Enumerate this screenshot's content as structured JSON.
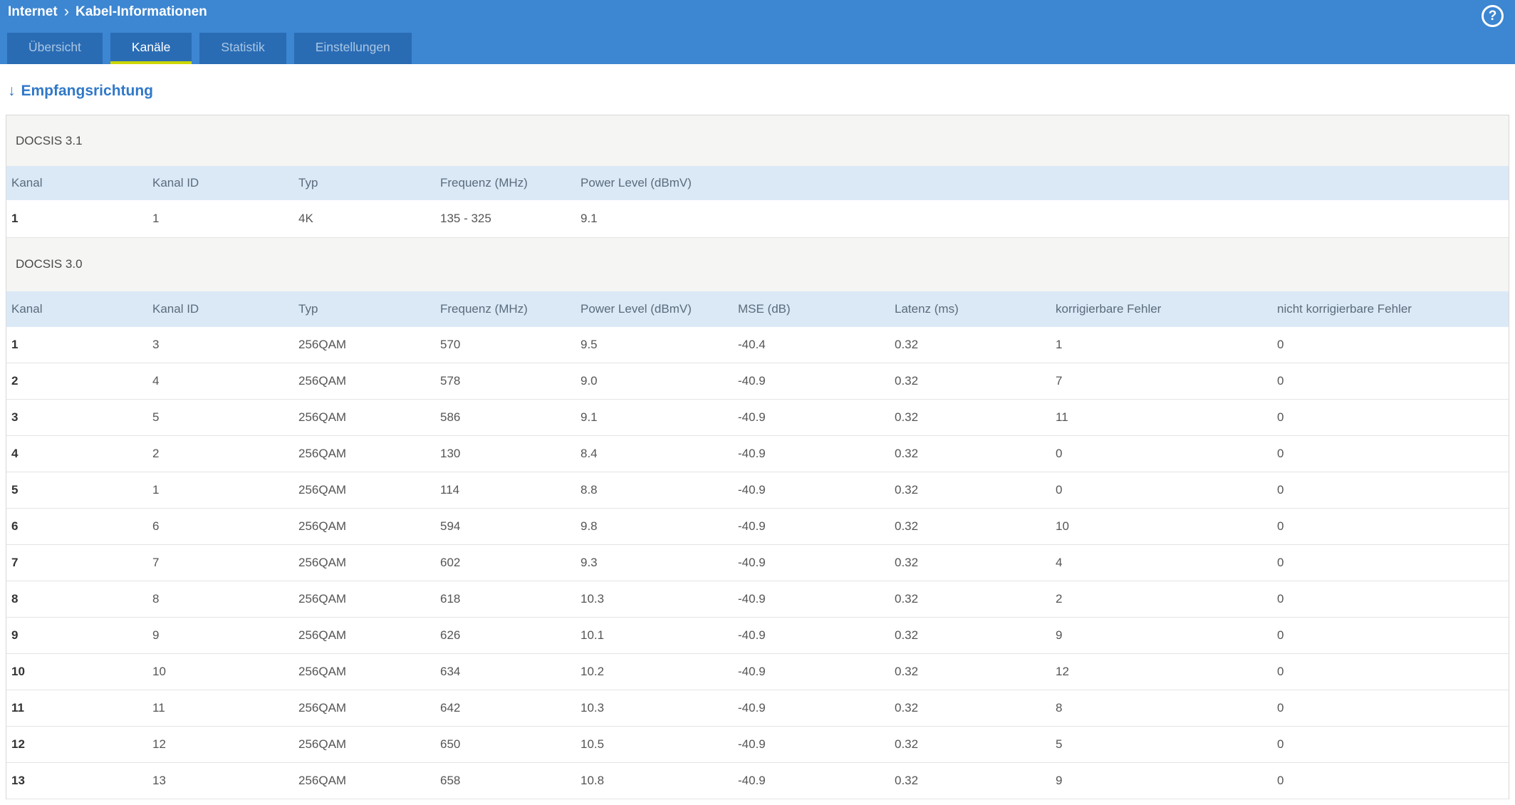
{
  "header": {
    "breadcrumb": {
      "section": "Internet",
      "separator": "›",
      "page": "Kabel-Informationen"
    },
    "help_label": "?",
    "tabs": [
      {
        "label": "Übersicht",
        "active": false
      },
      {
        "label": "Kanäle",
        "active": true
      },
      {
        "label": "Statistik",
        "active": false
      },
      {
        "label": "Einstellungen",
        "active": false
      }
    ]
  },
  "page": {
    "heading": {
      "arrow": "↓",
      "label": "Empfangsrichtung"
    },
    "docsis31": {
      "title": "DOCSIS 3.1",
      "columns": [
        "Kanal",
        "Kanal ID",
        "Typ",
        "Frequenz (MHz)",
        "Power Level (dBmV)"
      ],
      "rows": [
        [
          "1",
          "1",
          "4K",
          "135 - 325",
          "9.1"
        ]
      ]
    },
    "docsis30": {
      "title": "DOCSIS 3.0",
      "columns": [
        "Kanal",
        "Kanal ID",
        "Typ",
        "Frequenz (MHz)",
        "Power Level (dBmV)",
        "MSE (dB)",
        "Latenz (ms)",
        "korrigierbare Fehler",
        "nicht korrigierbare Fehler"
      ],
      "rows": [
        [
          "1",
          "3",
          "256QAM",
          "570",
          "9.5",
          "-40.4",
          "0.32",
          "1",
          "0"
        ],
        [
          "2",
          "4",
          "256QAM",
          "578",
          "9.0",
          "-40.9",
          "0.32",
          "7",
          "0"
        ],
        [
          "3",
          "5",
          "256QAM",
          "586",
          "9.1",
          "-40.9",
          "0.32",
          "11",
          "0"
        ],
        [
          "4",
          "2",
          "256QAM",
          "130",
          "8.4",
          "-40.9",
          "0.32",
          "0",
          "0"
        ],
        [
          "5",
          "1",
          "256QAM",
          "114",
          "8.8",
          "-40.9",
          "0.32",
          "0",
          "0"
        ],
        [
          "6",
          "6",
          "256QAM",
          "594",
          "9.8",
          "-40.9",
          "0.32",
          "10",
          "0"
        ],
        [
          "7",
          "7",
          "256QAM",
          "602",
          "9.3",
          "-40.9",
          "0.32",
          "4",
          "0"
        ],
        [
          "8",
          "8",
          "256QAM",
          "618",
          "10.3",
          "-40.9",
          "0.32",
          "2",
          "0"
        ],
        [
          "9",
          "9",
          "256QAM",
          "626",
          "10.1",
          "-40.9",
          "0.32",
          "9",
          "0"
        ],
        [
          "10",
          "10",
          "256QAM",
          "634",
          "10.2",
          "-40.9",
          "0.32",
          "12",
          "0"
        ],
        [
          "11",
          "11",
          "256QAM",
          "642",
          "10.3",
          "-40.9",
          "0.32",
          "8",
          "0"
        ],
        [
          "12",
          "12",
          "256QAM",
          "650",
          "10.5",
          "-40.9",
          "0.32",
          "5",
          "0"
        ],
        [
          "13",
          "13",
          "256QAM",
          "658",
          "10.8",
          "-40.9",
          "0.32",
          "9",
          "0"
        ]
      ]
    }
  },
  "colors": {
    "header_blue": "#3c86d2",
    "tab_blue": "#2a6cb4",
    "tab_inactive_text": "#a9c6e4",
    "active_tab_underline": "#ccd600",
    "heading_blue": "#3078c8",
    "section_band_bg": "#f5f5f3",
    "table_header_bg": "#dbe9f7"
  }
}
